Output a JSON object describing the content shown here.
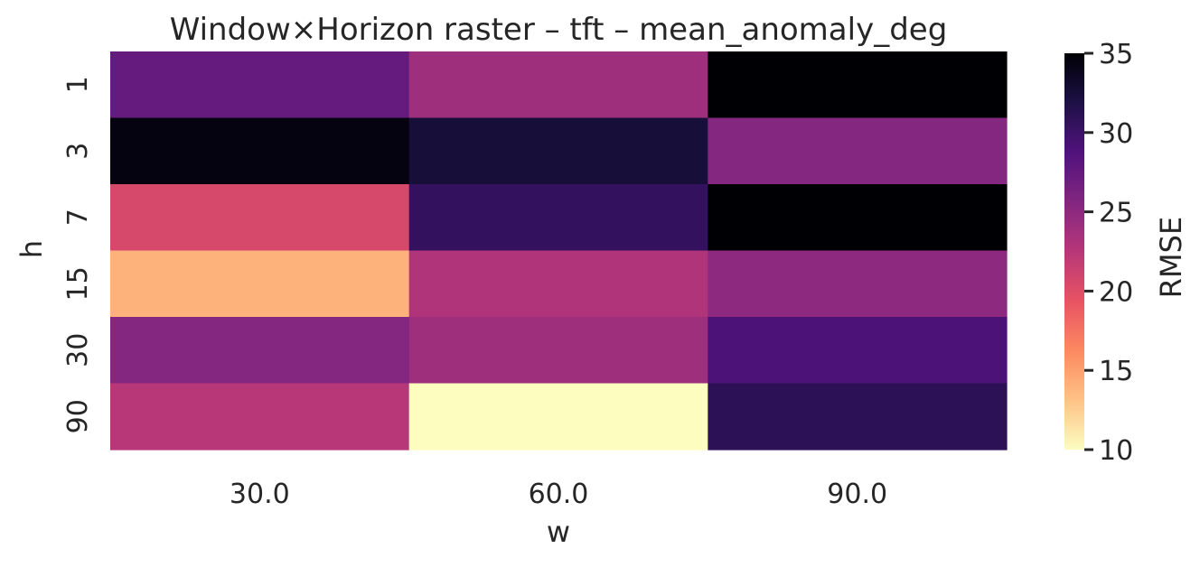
{
  "chart_data": {
    "type": "heatmap",
    "title": "Window×Horizon raster – tft – mean_anomaly_deg",
    "xlabel": "w",
    "ylabel": "h",
    "x_categories": [
      "30.0",
      "60.0",
      "90.0"
    ],
    "y_categories": [
      "1",
      "3",
      "7",
      "15",
      "30",
      "90"
    ],
    "values": [
      [
        27.5,
        24.0,
        35.0
      ],
      [
        34.5,
        32.5,
        25.5
      ],
      [
        20.5,
        30.5,
        35.0
      ],
      [
        14.0,
        23.0,
        25.0
      ],
      [
        25.5,
        24.0,
        29.0
      ],
      [
        22.5,
        10.0,
        31.0
      ]
    ],
    "colorbar": {
      "label": "RMSE",
      "min": 10,
      "max": 35,
      "ticks": [
        "10",
        "15",
        "20",
        "25",
        "30",
        "35"
      ],
      "colormap": "magma_r"
    },
    "grid": false
  }
}
